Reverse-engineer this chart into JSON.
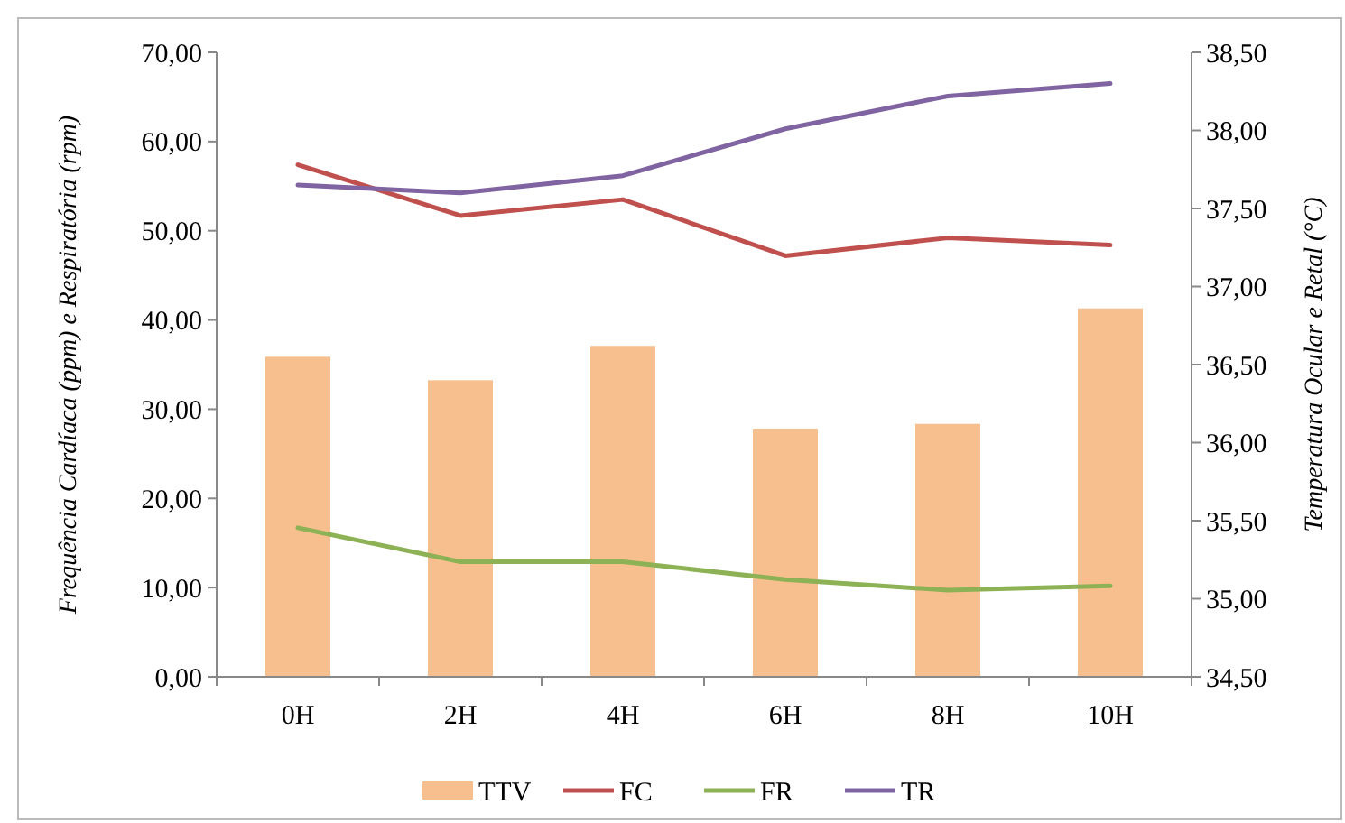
{
  "chart_data": {
    "type": "bar",
    "ylabel": "Frequência Cardíaca (ppm) e Respiratória (rpm)",
    "y2label": "Temperatura Ocular e Retal (°C)",
    "categories": [
      "0H",
      "2H",
      "4H",
      "6H",
      "8H",
      "10H"
    ],
    "series": [
      {
        "name": "TTV",
        "axis": "y2",
        "color": "#f8bf8e",
        "values": [
          36.55,
          36.4,
          36.62,
          36.09,
          36.12,
          36.86
        ]
      },
      {
        "name": "FC",
        "type": "line",
        "color": "#c0504d",
        "values": [
          57.4,
          51.7,
          53.5,
          47.2,
          49.2,
          48.4
        ]
      },
      {
        "name": "FR",
        "type": "line",
        "color": "#8db155",
        "values": [
          16.7,
          12.9,
          12.9,
          10.9,
          9.7,
          10.2
        ]
      },
      {
        "name": "TR",
        "type": "line",
        "axis": "y2",
        "color": "#8064a2",
        "values": [
          37.65,
          37.6,
          37.71,
          38.01,
          38.22,
          38.3
        ]
      }
    ],
    "ylim": [
      0,
      70
    ],
    "yticks": [
      {
        "value": 0,
        "label": "0,00"
      },
      {
        "value": 10,
        "label": "10,00"
      },
      {
        "value": 20,
        "label": "20,00"
      },
      {
        "value": 30,
        "label": "30,00"
      },
      {
        "value": 40,
        "label": "40,00"
      },
      {
        "value": 50,
        "label": "50,00"
      },
      {
        "value": 60,
        "label": "60,00"
      },
      {
        "value": 70,
        "label": "70,00"
      }
    ],
    "y2lim": [
      34.5,
      38.5
    ],
    "y2ticks": [
      {
        "value": 34.5,
        "label": "34,50"
      },
      {
        "value": 35,
        "label": "35,00"
      },
      {
        "value": 35.5,
        "label": "35,50"
      },
      {
        "value": 36,
        "label": "36,00"
      },
      {
        "value": 36.5,
        "label": "36,50"
      },
      {
        "value": 37,
        "label": "37,00"
      },
      {
        "value": 37.5,
        "label": "37,50"
      },
      {
        "value": 38,
        "label": "38,00"
      },
      {
        "value": 38.5,
        "label": "38,50"
      }
    ],
    "grid": false,
    "legend": "bottom",
    "line_style": "solid",
    "marker": "none"
  }
}
